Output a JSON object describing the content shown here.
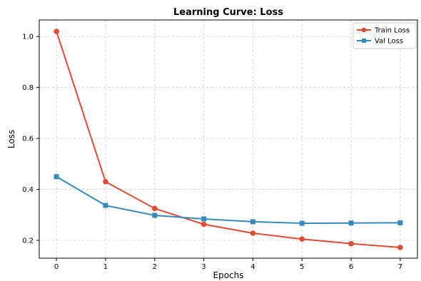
{
  "chart_data": {
    "type": "line",
    "title": "Learning Curve: Loss",
    "xlabel": "Epochs",
    "ylabel": "Loss",
    "x": [
      0,
      1,
      2,
      3,
      4,
      5,
      6,
      7
    ],
    "xlim": [
      -0.35,
      7.35
    ],
    "ylim": [
      0.13,
      1.065
    ],
    "xticks": [
      "0",
      "1",
      "2",
      "3",
      "4",
      "5",
      "6",
      "7"
    ],
    "yticks": [
      "0.2",
      "0.4",
      "0.6",
      "0.8",
      "1.0"
    ],
    "grid": true,
    "legend_position": "top-right",
    "series": [
      {
        "name": "Train Loss",
        "color": "#e24a33",
        "marker": "circle",
        "values": [
          1.02,
          0.43,
          0.325,
          0.263,
          0.228,
          0.205,
          0.187,
          0.172
        ]
      },
      {
        "name": "Val Loss",
        "color": "#348abd",
        "marker": "square",
        "values": [
          0.45,
          0.337,
          0.298,
          0.284,
          0.273,
          0.267,
          0.268,
          0.269
        ]
      }
    ]
  }
}
